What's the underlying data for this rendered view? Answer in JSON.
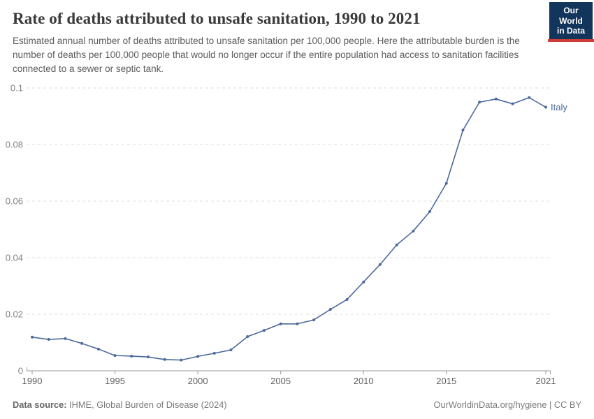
{
  "header": {
    "title": "Rate of deaths attributed to unsafe sanitation, 1990 to 2021",
    "subtitle": "Estimated annual number of deaths attributed to unsafe sanitation per 100,000 people. Here the attributable burden is the number of deaths per 100,000 people that would no longer occur if the entire population had access to sanitation facilities connected to a sewer or septic tank.",
    "logo": {
      "line1": "Our World",
      "line2": "in Data",
      "bg_color": "#12355B",
      "accent_color": "#CE3E36"
    }
  },
  "chart_data": {
    "type": "line",
    "title": "Rate of deaths attributed to unsafe sanitation, 1990 to 2021",
    "x": [
      1990,
      1991,
      1992,
      1993,
      1994,
      1995,
      1996,
      1997,
      1998,
      1999,
      2000,
      2001,
      2002,
      2003,
      2004,
      2005,
      2006,
      2007,
      2008,
      2009,
      2010,
      2011,
      2012,
      2013,
      2014,
      2015,
      2016,
      2017,
      2018,
      2019,
      2020,
      2021
    ],
    "series": [
      {
        "name": "Italy",
        "color": "#4C6A9C",
        "values": [
          0.0119,
          0.0111,
          0.0114,
          0.0097,
          0.0077,
          0.0054,
          0.0052,
          0.0049,
          0.004,
          0.0038,
          0.0051,
          0.0062,
          0.0074,
          0.0121,
          0.0143,
          0.0166,
          0.0166,
          0.018,
          0.0217,
          0.0252,
          0.0314,
          0.0376,
          0.0445,
          0.0494,
          0.0563,
          0.0663,
          0.0851,
          0.095,
          0.0961,
          0.0944,
          0.0966,
          0.0932
        ]
      }
    ],
    "xlabel": "",
    "ylabel": "",
    "xticks": [
      1990,
      1995,
      2000,
      2005,
      2010,
      2015,
      2021
    ],
    "yticks": [
      0,
      0.02,
      0.04,
      0.06,
      0.08,
      0.1
    ],
    "xlim": [
      1990,
      2021
    ],
    "ylim": [
      0,
      0.1
    ],
    "grid": "horizontal-dashed",
    "legend_position": "end-of-line",
    "line_label": "Italy",
    "axis_color": "#9a9a9a",
    "grid_color": "#dddddd",
    "ytick_color": "#828282",
    "xtick_color": "#5f5f5f"
  },
  "footer": {
    "source_label": "Data source:",
    "source_text": "IHME, Global Burden of Disease (2024)",
    "right_text": "OurWorldinData.org/hygiene | CC BY"
  }
}
